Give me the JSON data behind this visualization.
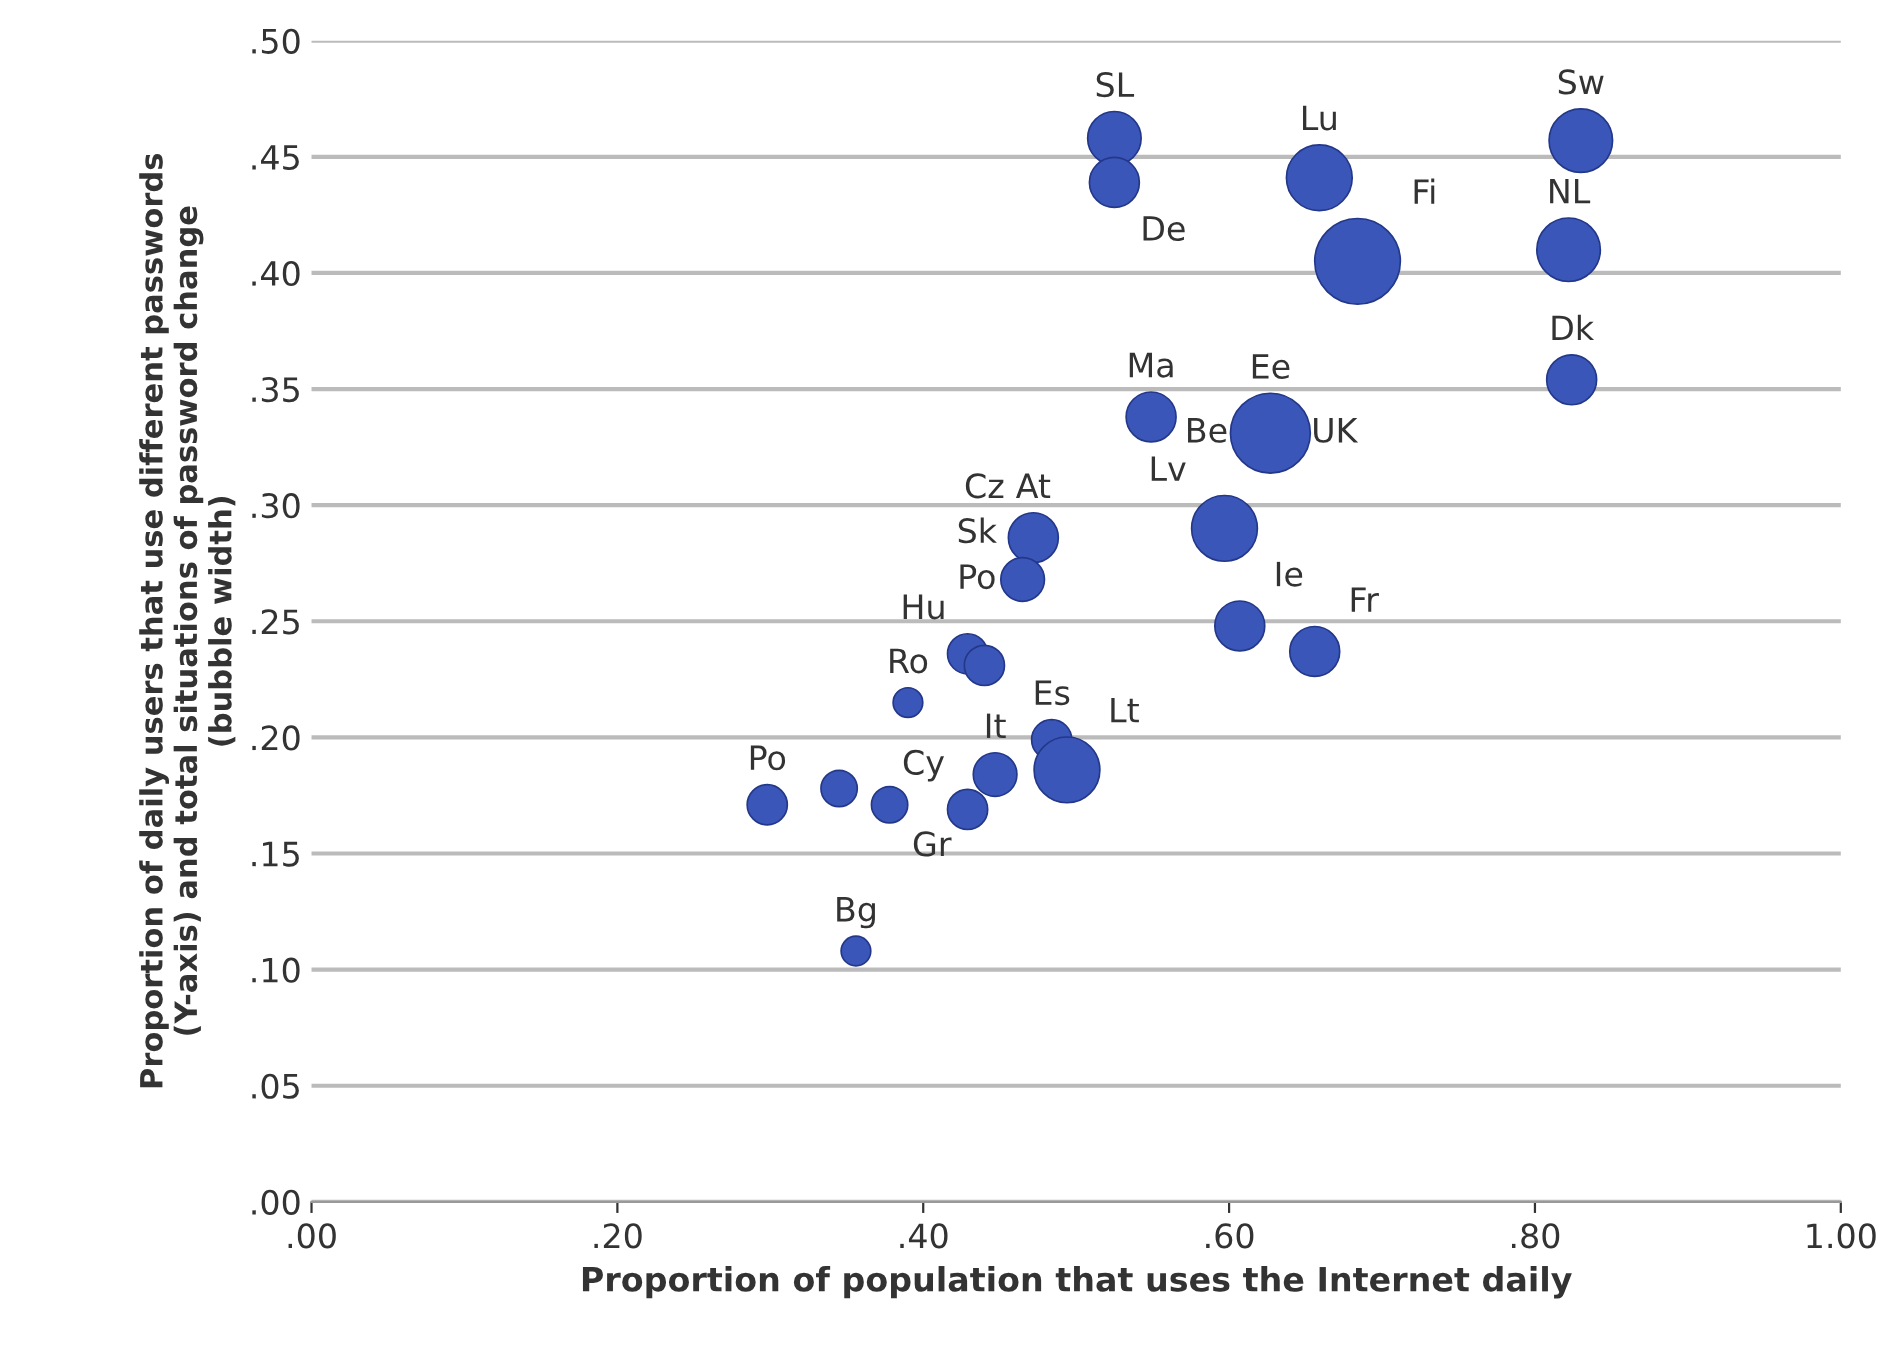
{
  "chart_data": {
    "type": "bubble",
    "xlabel": "Proportion of population that uses the Internet daily",
    "ylabel": "Proportion of daily users that use different passwords\n(Y-axis) and total situations of password change\n(bubble width)",
    "x": [
      0.525,
      0.525,
      0.659,
      0.684,
      0.83,
      0.822,
      0.824,
      0.549,
      0.627,
      0.472,
      0.465,
      0.597,
      0.607,
      0.656,
      0.429,
      0.44,
      0.39,
      0.298,
      0.345,
      0.378,
      0.429,
      0.447,
      0.484,
      0.494,
      0.356
    ],
    "series": [
      {
        "color": "#3a56b8",
        "values": [
          0.458,
          0.439,
          0.441,
          0.405,
          0.457,
          0.41,
          0.354,
          0.338,
          0.331,
          0.286,
          0.268,
          0.29,
          0.248,
          0.237,
          0.236,
          0.231,
          0.215,
          0.171,
          0.178,
          0.171,
          0.169,
          0.184,
          0.199,
          0.186,
          0.108
        ],
        "sizes": [
          0.39,
          0.34,
          0.59,
          1,
          0.55,
          0.55,
          0.34,
          0.34,
          0.87,
          0.34,
          0.26,
          0.59,
          0.34,
          0.34,
          0.22,
          0.22,
          0.12,
          0.22,
          0.18,
          0.18,
          0.22,
          0.26,
          0.22,
          0.59,
          0.12
        ]
      }
    ],
    "annotations": [
      {
        "text": "SL",
        "x": 0.525,
        "y": 0.458
      },
      {
        "text": "Lu",
        "x": 0.659,
        "y": 0.441
      },
      {
        "text": "Sw",
        "x": 0.83,
        "y": 0.457
      },
      {
        "text": "De",
        "x": 0.525,
        "y": 0.439
      },
      {
        "text": "Fi",
        "x": 0.684,
        "y": 0.405
      },
      {
        "text": "NL",
        "x": 0.822,
        "y": 0.41
      },
      {
        "text": "Dk",
        "x": 0.824,
        "y": 0.354
      },
      {
        "text": "Ma",
        "x": 0.549,
        "y": 0.338
      },
      {
        "text": "Ee",
        "x": 0.627,
        "y": 0.331
      },
      {
        "text": "Be",
        "x": 0.627,
        "y": 0.331
      },
      {
        "text": "UK",
        "x": 0.627,
        "y": 0.331
      },
      {
        "text": "At",
        "x": 0.472,
        "y": 0.286
      },
      {
        "text": "Lv",
        "x": 0.597,
        "y": 0.29
      },
      {
        "text": "Cz",
        "x": 0.472,
        "y": 0.286
      },
      {
        "text": "Po",
        "x": 0.465,
        "y": 0.268
      },
      {
        "text": "Sk",
        "x": 0.465,
        "y": 0.268
      },
      {
        "text": "Ie",
        "x": 0.607,
        "y": 0.248
      },
      {
        "text": "Fr",
        "x": 0.656,
        "y": 0.237
      },
      {
        "text": "Hu",
        "x": 0.429,
        "y": 0.236
      },
      {
        "text": "Es",
        "x": 0.484,
        "y": 0.199
      },
      {
        "text": "It",
        "x": 0.447,
        "y": 0.184
      },
      {
        "text": "Cy",
        "x": 0.429,
        "y": 0.169
      },
      {
        "text": "Ro",
        "x": 0.39,
        "y": 0.215
      },
      {
        "text": "Gr",
        "x": 0.378,
        "y": 0.171
      },
      {
        "text": "Po",
        "x": 0.298,
        "y": 0.171
      },
      {
        "text": "Lt",
        "x": 0.494,
        "y": 0.186
      },
      {
        "text": "Bg",
        "x": 0.356,
        "y": 0.108
      }
    ],
    "xlim": [
      0,
      1
    ],
    "xticks": [
      {
        "value": 0,
        "label": ".00"
      },
      {
        "value": 0.2,
        "label": ".20"
      },
      {
        "value": 0.4,
        "label": ".40"
      },
      {
        "value": 0.6,
        "label": ".60"
      },
      {
        "value": 0.8,
        "label": ".80"
      },
      {
        "value": 1,
        "label": "1.00"
      }
    ],
    "ylim": [
      0,
      0.5
    ],
    "yticks": [
      {
        "value": 0,
        "label": ".00"
      },
      {
        "value": 0.05,
        "label": ".05"
      },
      {
        "value": 0.1,
        "label": ".10"
      },
      {
        "value": 0.15,
        "label": ".15"
      },
      {
        "value": 0.2,
        "label": ".20"
      },
      {
        "value": 0.25,
        "label": ".25"
      },
      {
        "value": 0.3,
        "label": ".30"
      },
      {
        "value": 0.35,
        "label": ".35"
      },
      {
        "value": 0.4,
        "label": ".40"
      },
      {
        "value": 0.45,
        "label": ".45"
      },
      {
        "value": 0.5,
        "label": ".50"
      }
    ],
    "grid": "y"
  }
}
